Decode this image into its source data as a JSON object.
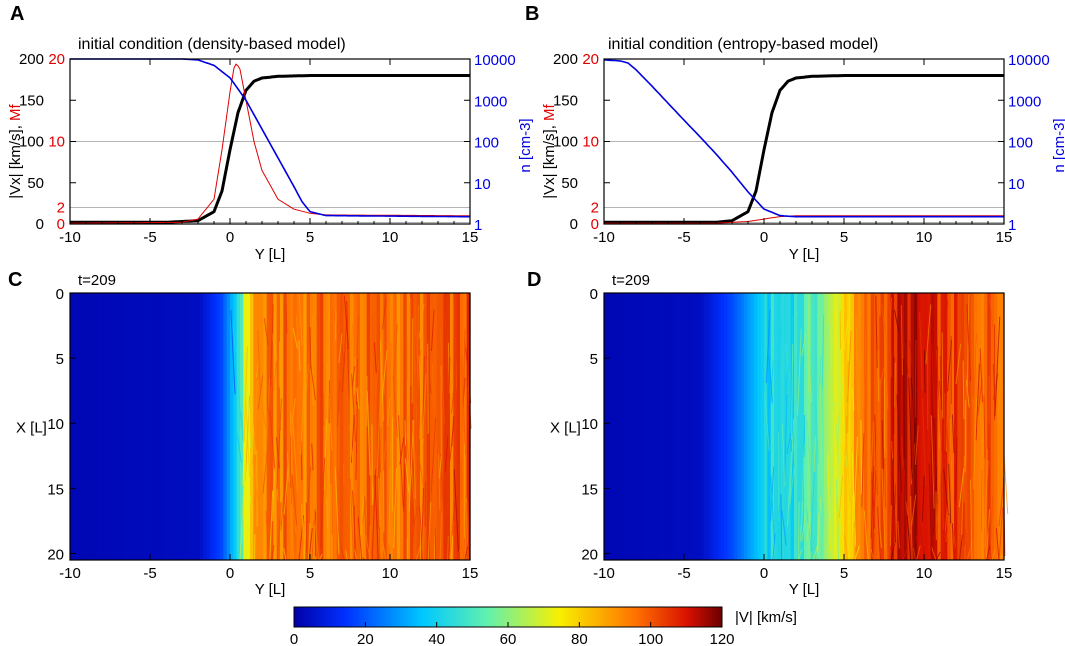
{
  "chart_data": [
    {
      "panel": "A",
      "type": "line",
      "title": "initial condition (density-based model)",
      "xlabel": "Y [L]",
      "ylabel_left": "|Vx| [km/s], Mf",
      "ylabel_right": "n [cm-3]",
      "xlim": [
        -10,
        15
      ],
      "ylim_left": [
        0,
        200
      ],
      "right_axis": "log",
      "ylim_right": [
        1,
        10000
      ],
      "grid_y": [
        10,
        100,
        2,
        0
      ],
      "xticks": [
        "-10",
        "-5",
        "0",
        "5",
        "10",
        "15"
      ],
      "yticks_left_black": [
        "0",
        "50",
        "100",
        "150",
        "200"
      ],
      "yticks_left_red": [
        "0",
        "2",
        "10",
        "20"
      ],
      "yticks_right": [
        "1",
        "10",
        "100",
        "1000",
        "10000"
      ],
      "series": [
        {
          "name": "|Vx|",
          "color": "#000000",
          "axis": "left",
          "x": [
            -10,
            -4,
            -2,
            -1,
            -0.5,
            0,
            0.5,
            1,
            1.5,
            2,
            3,
            5,
            15
          ],
          "values": [
            2,
            2,
            4,
            15,
            40,
            90,
            135,
            162,
            173,
            177,
            179,
            180,
            180
          ]
        },
        {
          "name": "Mf",
          "color": "#e00000",
          "axis": "left_red",
          "x": [
            -10,
            -3,
            -2,
            -1,
            -0.5,
            0,
            0.3,
            0.6,
            1,
            1.5,
            2,
            3,
            4,
            5,
            6,
            15
          ],
          "values": [
            0.1,
            0.2,
            0.6,
            3,
            9,
            16,
            19.5,
            19,
            15,
            10,
            6.5,
            3,
            1.8,
            1.3,
            1.1,
            1
          ]
        },
        {
          "name": "n",
          "color": "#0000e0",
          "axis": "right",
          "x": [
            -10,
            -3,
            -2,
            -1,
            0,
            1,
            2,
            3,
            4,
            4.5,
            5,
            6,
            15
          ],
          "values": [
            10000,
            10000,
            9500,
            7000,
            3500,
            1000,
            200,
            40,
            8,
            3.5,
            2,
            1.6,
            1.5
          ]
        }
      ]
    },
    {
      "panel": "B",
      "type": "line",
      "title": "initial condition (entropy-based model)",
      "xlabel": "Y [L]",
      "ylabel_left": "|Vx| [km/s], Mf",
      "ylabel_right": "n [cm-3]",
      "xlim": [
        -10,
        15
      ],
      "ylim_left": [
        0,
        200
      ],
      "right_axis": "log",
      "ylim_right": [
        1,
        10000
      ],
      "grid_y": [
        10,
        100,
        2,
        0
      ],
      "xticks": [
        "-10",
        "-5",
        "0",
        "5",
        "10",
        "15"
      ],
      "yticks_left_black": [
        "0",
        "50",
        "100",
        "150",
        "200"
      ],
      "yticks_left_red": [
        "0",
        "2",
        "10",
        "20"
      ],
      "yticks_right": [
        "1",
        "10",
        "100",
        "1000",
        "10000"
      ],
      "series": [
        {
          "name": "|Vx|",
          "color": "#000000",
          "axis": "left",
          "x": [
            -10,
            -3,
            -2,
            -1,
            -0.5,
            0,
            0.5,
            1,
            1.5,
            2,
            3,
            5,
            15
          ],
          "values": [
            2,
            2,
            4,
            15,
            40,
            90,
            135,
            162,
            173,
            177,
            179,
            180,
            180
          ]
        },
        {
          "name": "Mf",
          "color": "#e00000",
          "axis": "left_red",
          "x": [
            -10,
            -3,
            -1,
            0,
            1,
            2,
            15
          ],
          "values": [
            0.1,
            0.1,
            0.3,
            0.6,
            0.9,
            1.0,
            1.0
          ]
        },
        {
          "name": "n",
          "color": "#0000e0",
          "axis": "right",
          "x": [
            -10,
            -9,
            -8.5,
            -8,
            -7,
            -6,
            -5,
            -4,
            -3,
            -2,
            -1,
            0,
            1,
            2,
            15
          ],
          "values": [
            9500,
            9000,
            8000,
            5500,
            2200,
            850,
            330,
            130,
            50,
            18,
            6,
            2.3,
            1.6,
            1.5,
            1.5
          ]
        }
      ]
    },
    {
      "panel": "C",
      "type": "heatmap",
      "label": "t=209",
      "xlabel": "Y [L]",
      "ylabel": "X [L]",
      "xlim": [
        -10,
        15
      ],
      "ylim": [
        20.5,
        0
      ],
      "xticks": [
        "-10",
        "-5",
        "0",
        "5",
        "10",
        "15"
      ],
      "yticks": [
        "0",
        "5",
        "10",
        "15",
        "20"
      ],
      "profile_y": [
        -10,
        -2,
        -0.5,
        0,
        0.5,
        1,
        1.5,
        3,
        7,
        10,
        13,
        15
      ],
      "profile_speed": [
        2,
        4,
        18,
        30,
        45,
        70,
        90,
        95,
        97,
        96,
        98,
        100
      ]
    },
    {
      "panel": "D",
      "type": "heatmap",
      "label": "t=209",
      "xlabel": "Y [L]",
      "ylabel": "X [L]",
      "xlim": [
        -10,
        15
      ],
      "ylim": [
        20.5,
        0
      ],
      "xticks": [
        "-10",
        "-5",
        "0",
        "5",
        "10",
        "15"
      ],
      "yticks": [
        "0",
        "5",
        "10",
        "15",
        "20"
      ],
      "profile_y": [
        -10,
        -4,
        -2,
        0,
        2,
        4,
        5,
        7,
        9,
        11,
        13,
        15
      ],
      "profile_speed": [
        2,
        4,
        18,
        40,
        45,
        60,
        80,
        100,
        112,
        105,
        98,
        100
      ]
    }
  ],
  "colorbar": {
    "label": "|V| [km/s]",
    "ticks": [
      "0",
      "20",
      "40",
      "60",
      "80",
      "100",
      "120"
    ],
    "range": [
      0,
      120
    ]
  },
  "colors": {
    "vx": "#000000",
    "mf": "#e00000",
    "n": "#0000e0",
    "grid": "#b4b4b4"
  }
}
